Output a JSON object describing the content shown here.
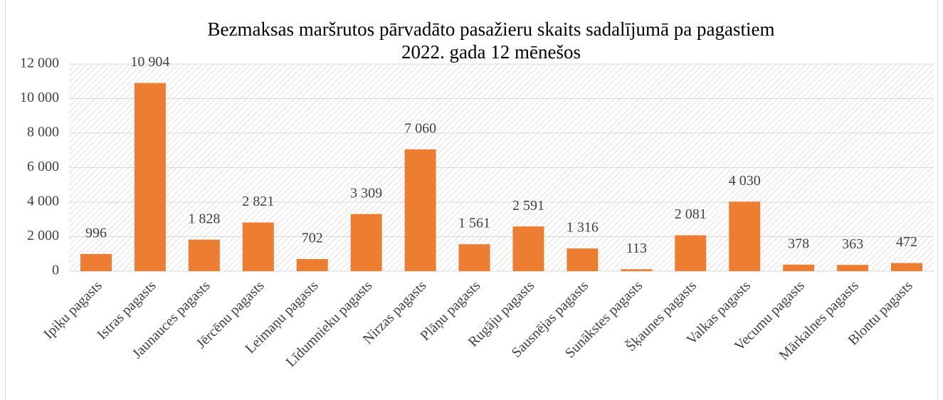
{
  "chart_data": {
    "type": "bar",
    "title": [
      "Bezmaksas maršrutos pārvadāto pasažieru skaits sadalījumā pa pagastiem",
      "2022. gada 12 mēnešos"
    ],
    "categories": [
      "Ipiķu pagasts",
      "Istras pagasts",
      "Jaunauces pagasts",
      "Jērcēnu pagasts",
      "Leimaņu pagasts",
      "Līdumnieku pagasts",
      "Nirzas pagasts",
      "Plāņu pagasts",
      "Rugāju pagasts",
      "Sausnējas pagasts",
      "Sunākstes pagasts",
      "Šķaunes pagasts",
      "Valkas pagasts",
      "Vecumu pagasts",
      "Mārkalnes pagasts",
      "Blontu pagasts"
    ],
    "values": [
      996,
      10904,
      1828,
      2821,
      702,
      3309,
      7060,
      1561,
      2591,
      1316,
      113,
      2081,
      4030,
      378,
      363,
      472
    ],
    "value_labels": [
      "996",
      "10 904",
      "1 828",
      "2 821",
      "702",
      "3 309",
      "7 060",
      "1 561",
      "2 591",
      "1 316",
      "113",
      "2 081",
      "4 030",
      "378",
      "363",
      "472"
    ],
    "color": "#ed7d31",
    "ylim": [
      0,
      12000
    ],
    "yticks": [
      0,
      {
        "value": 2000,
        "label": "2 000"
      },
      {
        "value": 4000,
        "label": "4 000"
      },
      {
        "value": 6000,
        "label": "6 000"
      },
      {
        "value": 8000,
        "label": "8 000"
      },
      {
        "value": 10000,
        "label": "10 000"
      },
      {
        "value": 12000,
        "label": "12 000"
      }
    ],
    "grid": true
  }
}
